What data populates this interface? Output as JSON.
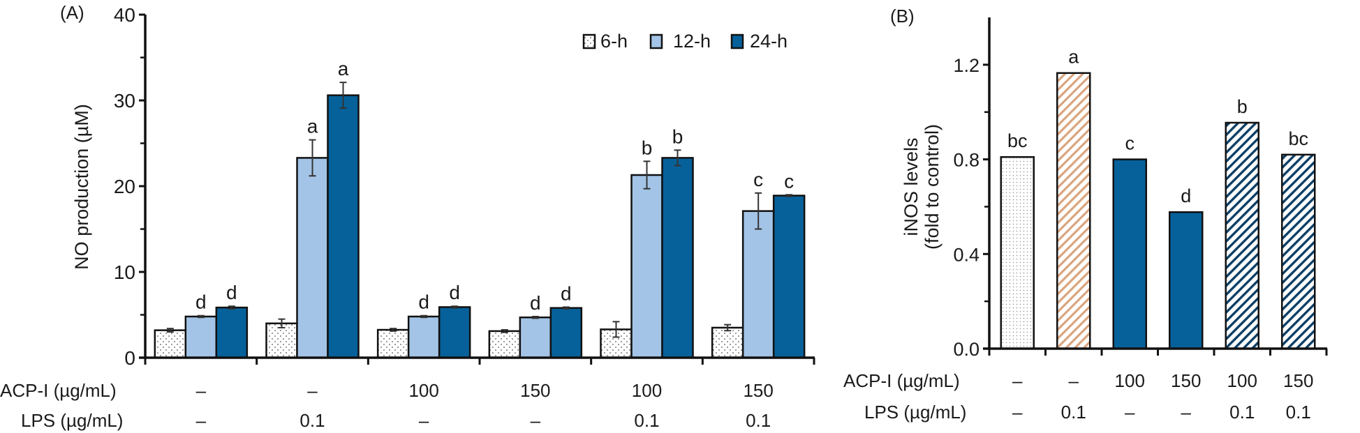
{
  "chart_data": [
    {
      "panel_label": "(A)",
      "type": "bar",
      "ylabel": "NO production (µM)",
      "ylim": [
        0,
        40
      ],
      "yticks": [
        0,
        10,
        20,
        30,
        40
      ],
      "yminor_ticks": [
        5,
        15,
        25,
        35
      ],
      "grid": false,
      "legend": {
        "placement": "top-right",
        "entries": [
          "6-h",
          "12-h",
          "24-h"
        ]
      },
      "row_labels": [
        "ACP-I (µg/mL)",
        "LPS (µg/mL)"
      ],
      "categories": [
        {
          "acp": "–",
          "lps": "–"
        },
        {
          "acp": "–",
          "lps": "0.1"
        },
        {
          "acp": "100",
          "lps": "–"
        },
        {
          "acp": "150",
          "lps": "–"
        },
        {
          "acp": "100",
          "lps": "0.1"
        },
        {
          "acp": "150",
          "lps": "0.1"
        }
      ],
      "series": [
        {
          "name": "6-h",
          "style": "dotted",
          "color": "#ffffff",
          "values": [
            3.2,
            4.0,
            3.25,
            3.1,
            3.3,
            3.5
          ],
          "errors": [
            0.2,
            0.5,
            0.15,
            0.15,
            0.9,
            0.35
          ],
          "letters": [
            "",
            "",
            "",
            "",
            "",
            ""
          ]
        },
        {
          "name": "12-h",
          "style": "solid",
          "color": "#a3c4e6",
          "values": [
            4.8,
            23.3,
            4.8,
            4.7,
            21.3,
            17.1
          ],
          "errors": [
            0.1,
            2.1,
            0.1,
            0.1,
            1.6,
            2.1
          ],
          "letters": [
            "d",
            "a",
            "d",
            "d",
            "b",
            "c"
          ]
        },
        {
          "name": "24-h",
          "style": "solid",
          "color": "#06619a",
          "values": [
            5.85,
            30.6,
            5.9,
            5.8,
            23.3,
            18.9
          ],
          "errors": [
            0.15,
            1.5,
            0.1,
            0.1,
            0.9,
            0.1
          ],
          "letters": [
            "d",
            "a",
            "d",
            "d",
            "b",
            "c"
          ]
        }
      ]
    },
    {
      "panel_label": "(B)",
      "type": "bar",
      "ylabel": "iNOS levels",
      "ylabel2": "(fold to control)",
      "ylim": [
        0,
        1.4
      ],
      "yticks": [
        "0.0",
        "0.4",
        "0.8",
        "1.2"
      ],
      "ytick_values": [
        0.0,
        0.4,
        0.8,
        1.2
      ],
      "yminor_ticks": [
        0.2,
        0.6,
        1.0
      ],
      "grid": false,
      "row_labels": [
        "ACP-I (µg/mL)",
        "LPS (µg/mL)"
      ],
      "categories": [
        {
          "acp": "–",
          "lps": "–"
        },
        {
          "acp": "–",
          "lps": "0.1"
        },
        {
          "acp": "100",
          "lps": "–"
        },
        {
          "acp": "150",
          "lps": "–"
        },
        {
          "acp": "100",
          "lps": "0.1"
        },
        {
          "acp": "150",
          "lps": "0.1"
        }
      ],
      "values": [
        0.81,
        1.165,
        0.8,
        0.577,
        0.955,
        0.82
      ],
      "letters": [
        "bc",
        "a",
        "c",
        "d",
        "b",
        "bc"
      ],
      "styles": [
        "dotted",
        "hatch-tan",
        "solid-blue",
        "solid-blue",
        "hatch-blue",
        "hatch-blue"
      ],
      "colors": {
        "tan": "#d9a47e",
        "blue": "#06619a",
        "navy_hatch": "#0d3f66"
      }
    }
  ]
}
